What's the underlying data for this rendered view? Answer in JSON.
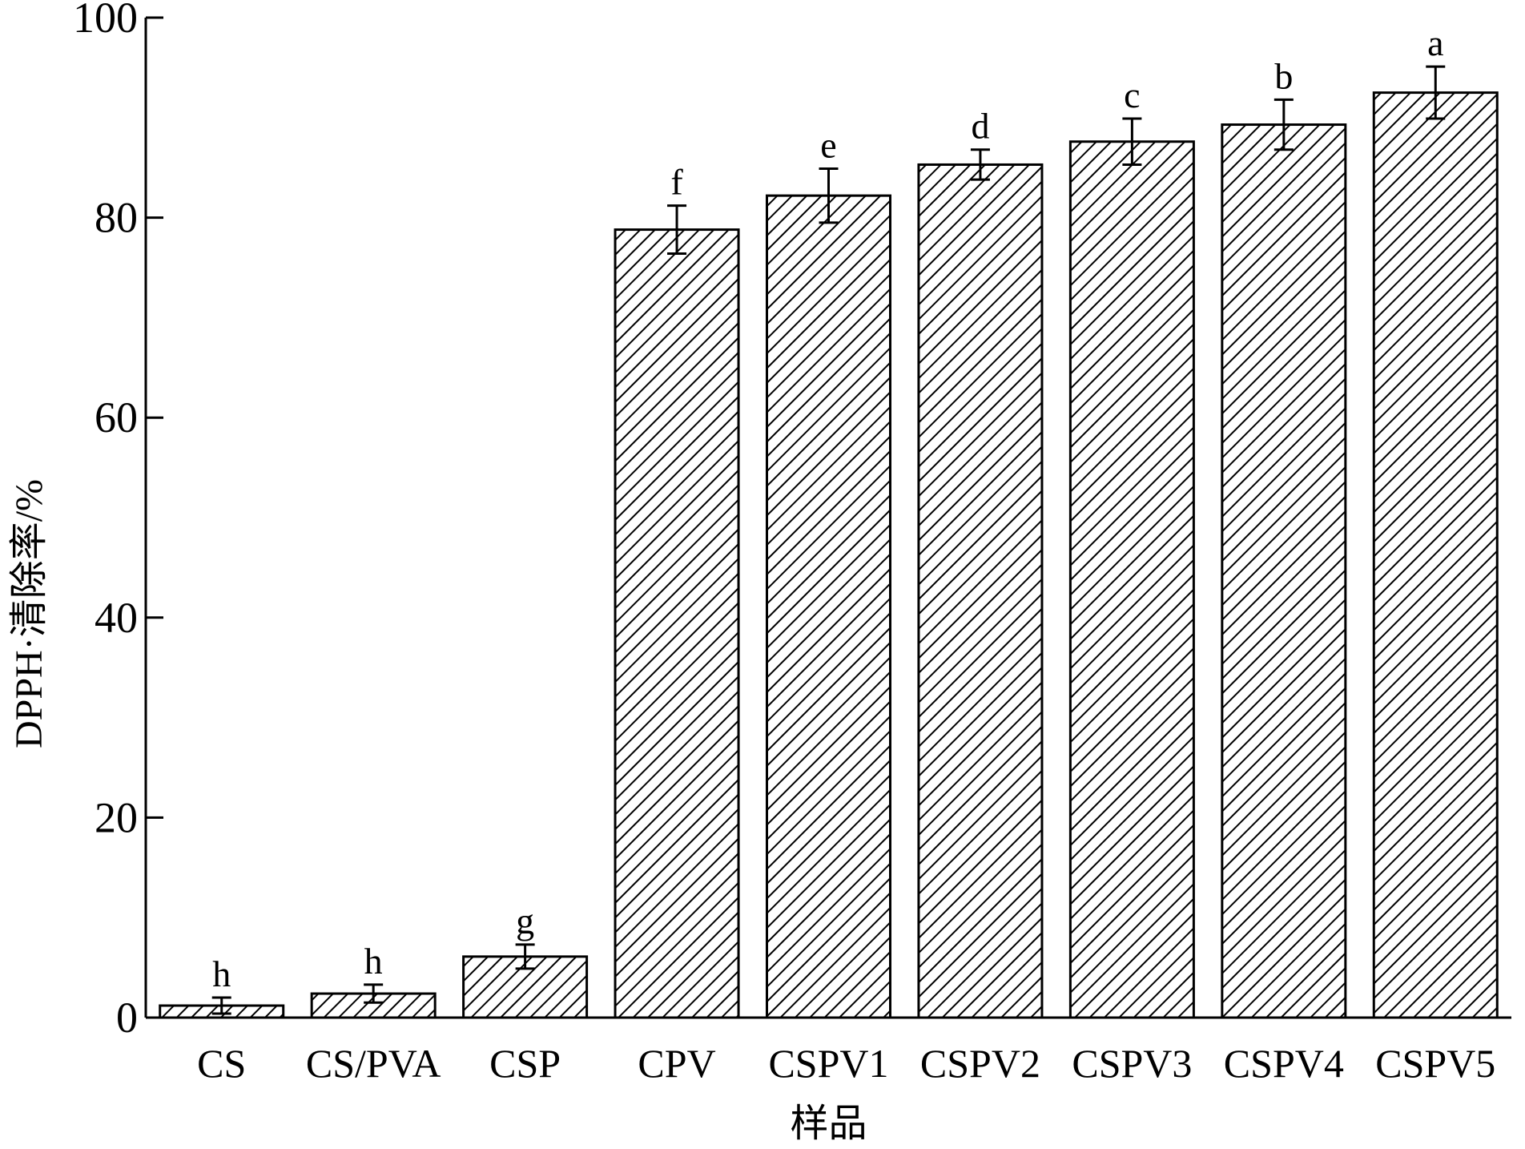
{
  "chart_data": {
    "type": "bar",
    "title": "",
    "xlabel": "样品",
    "ylabel": "DPPH·清除率/%",
    "ylim": [
      0,
      100
    ],
    "yticks": [
      0,
      20,
      40,
      60,
      80,
      100
    ],
    "ytick_labels": [
      "0",
      "20",
      "40",
      "60",
      "80",
      "100"
    ],
    "grid": false,
    "legend": "none",
    "bar_fill": "diagonal-hatch",
    "colors": {
      "bar_stroke": "#000000",
      "hatch": "#000000",
      "background": "#ffffff"
    },
    "categories": [
      "CS",
      "CS/PVA",
      "CSP",
      "CPV",
      "CSPV1",
      "CSPV2",
      "CSPV3",
      "CSPV4",
      "CSPV5"
    ],
    "values": [
      1.2,
      2.4,
      6.1,
      78.8,
      82.2,
      85.3,
      87.6,
      89.3,
      92.5
    ],
    "errors": [
      0.8,
      0.9,
      1.2,
      2.4,
      2.7,
      1.5,
      2.3,
      2.5,
      2.6
    ],
    "significance": [
      "h",
      "h",
      "g",
      "f",
      "e",
      "d",
      "c",
      "b",
      "a"
    ]
  }
}
